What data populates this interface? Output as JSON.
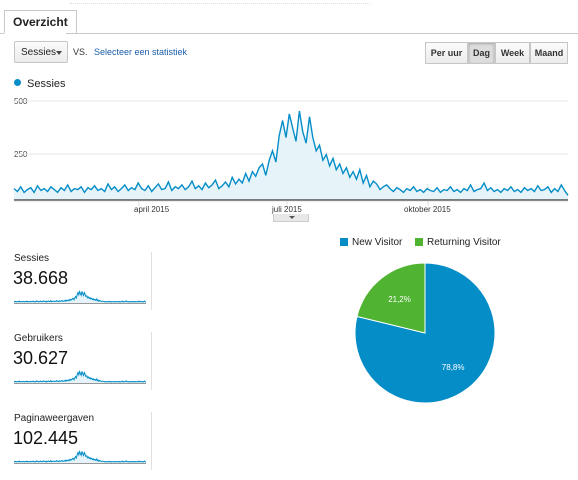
{
  "tabs": [
    {
      "label": "Overzicht"
    }
  ],
  "toolbar": {
    "metric_select": "Sessies",
    "vs_label": "VS.",
    "select_stat_link": "Selecteer een statistiek",
    "periods": [
      {
        "label": "Per uur",
        "active": false
      },
      {
        "label": "Dag",
        "active": true
      },
      {
        "label": "Week",
        "active": false
      },
      {
        "label": "Maand",
        "active": false
      }
    ]
  },
  "colors": {
    "primary": "#058dc7",
    "returning": "#50b432",
    "area_fill": "#e6f4fa"
  },
  "chart_data": [
    {
      "type": "area",
      "series": [
        {
          "name": "Sessies"
        }
      ],
      "yticks": [
        "500",
        "250"
      ],
      "xticks": [
        "april 2015",
        "juli 2015",
        "oktober 2015"
      ],
      "ylim": [
        0,
        560
      ],
      "values": [
        60,
        45,
        70,
        40,
        55,
        65,
        40,
        75,
        50,
        60,
        45,
        70,
        55,
        40,
        65,
        50,
        80,
        45,
        60,
        55,
        70,
        40,
        65,
        55,
        75,
        50,
        60,
        45,
        85,
        55,
        70,
        45,
        60,
        80,
        50,
        65,
        55,
        90,
        60,
        50,
        75,
        45,
        65,
        85,
        55,
        60,
        95,
        50,
        70,
        60,
        80,
        55,
        70,
        100,
        60,
        75,
        55,
        90,
        65,
        80,
        105,
        60,
        75,
        95,
        70,
        120,
        85,
        110,
        90,
        140,
        100,
        150,
        125,
        170,
        190,
        130,
        210,
        260,
        200,
        340,
        420,
        330,
        455,
        380,
        310,
        470,
        360,
        300,
        440,
        330,
        260,
        290,
        210,
        240,
        180,
        220,
        160,
        190,
        140,
        170,
        120,
        150,
        110,
        160,
        90,
        130,
        70,
        100,
        85,
        55,
        70,
        80,
        60,
        45,
        65,
        55,
        40,
        60,
        50,
        70,
        45,
        55,
        40,
        60,
        50,
        45,
        65,
        40,
        55,
        50,
        70,
        45,
        55,
        40,
        60,
        50,
        80,
        45,
        55,
        60,
        90,
        50,
        65,
        45,
        55,
        40,
        60,
        50,
        70,
        45,
        55,
        40,
        65,
        50,
        60,
        45,
        75,
        50,
        55,
        70,
        40,
        60,
        45,
        80,
        50,
        25
      ]
    },
    {
      "type": "pie",
      "legend": [
        "New Visitor",
        "Returning Visitor"
      ],
      "values": [
        78.8,
        21.2
      ],
      "labels": [
        "78,8%",
        "21,2%"
      ]
    }
  ],
  "metrics": [
    {
      "label": "Sessies",
      "value": "38.668"
    },
    {
      "label": "Gebruikers",
      "value": "30.627"
    },
    {
      "label": "Paginaweergaven",
      "value": "102.445"
    }
  ]
}
